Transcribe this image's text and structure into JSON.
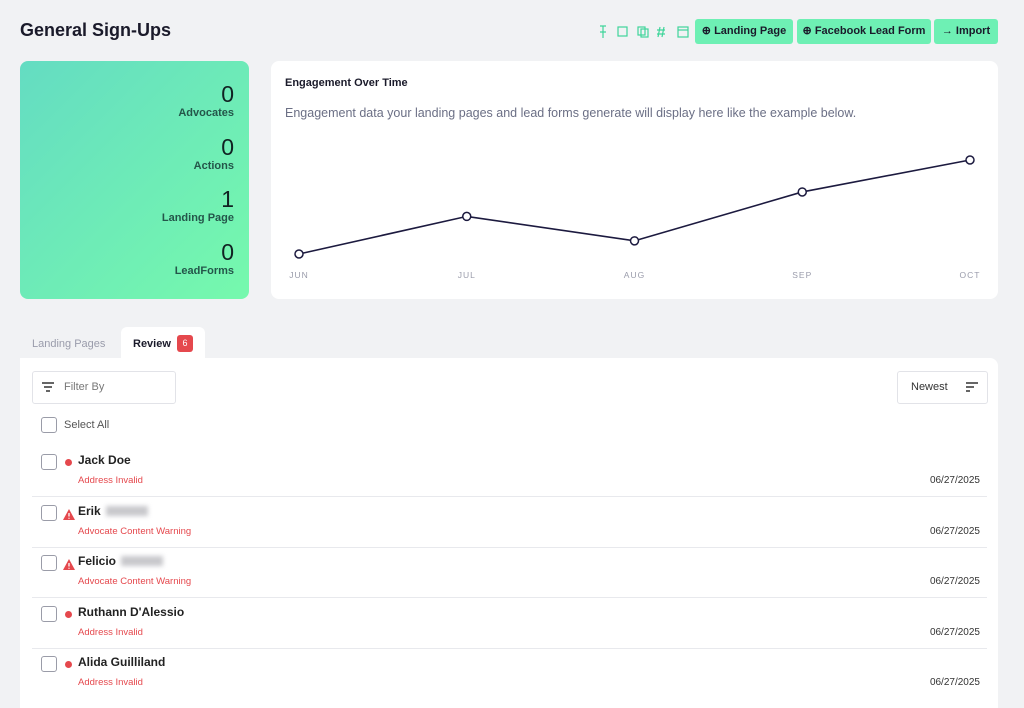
{
  "header": {
    "title": "General Sign-Ups",
    "buttons": [
      "Landing Page",
      "Facebook Lead Form",
      "Import"
    ]
  },
  "stats": [
    {
      "value": 0,
      "label": "Advocates"
    },
    {
      "value": 0,
      "label": "Actions"
    },
    {
      "value": 1,
      "label": "Landing Page"
    },
    {
      "value": 0,
      "label": "LeadForms"
    }
  ],
  "engagement": {
    "title": "Engagement Over Time",
    "description": "Engagement data your landing pages and lead forms generate will display here like the example below.",
    "chart_data": {
      "type": "line",
      "categories": [
        "JUN",
        "JUL",
        "AUG",
        "SEP",
        "OCT"
      ],
      "values": [
        10,
        30,
        17,
        43,
        60
      ],
      "color": "#1c1a3f"
    }
  },
  "tabs": [
    {
      "label": "Landing Pages"
    },
    {
      "label": "Review",
      "count": 6
    }
  ],
  "filter": "Filter By",
  "sort": "Newest",
  "select_all": "Select All",
  "rows": [
    {
      "name": "Jack Doe",
      "status": "Address Invalid",
      "date": "06/27/2025",
      "icon": "dot"
    },
    {
      "name": "Erik",
      "status": "Advocate Content Warning",
      "date": "06/27/2025",
      "icon": "warning"
    },
    {
      "name": "Felicio",
      "status": "Advocate Content Warning",
      "date": "06/27/2025",
      "icon": "warning"
    },
    {
      "name": "Ruthann D'Alessio",
      "status": "Address Invalid",
      "date": "06/27/2025",
      "icon": "dot"
    },
    {
      "name": "Alida Guilliland",
      "status": "Address Invalid",
      "date": "06/27/2025",
      "icon": "dot"
    }
  ]
}
